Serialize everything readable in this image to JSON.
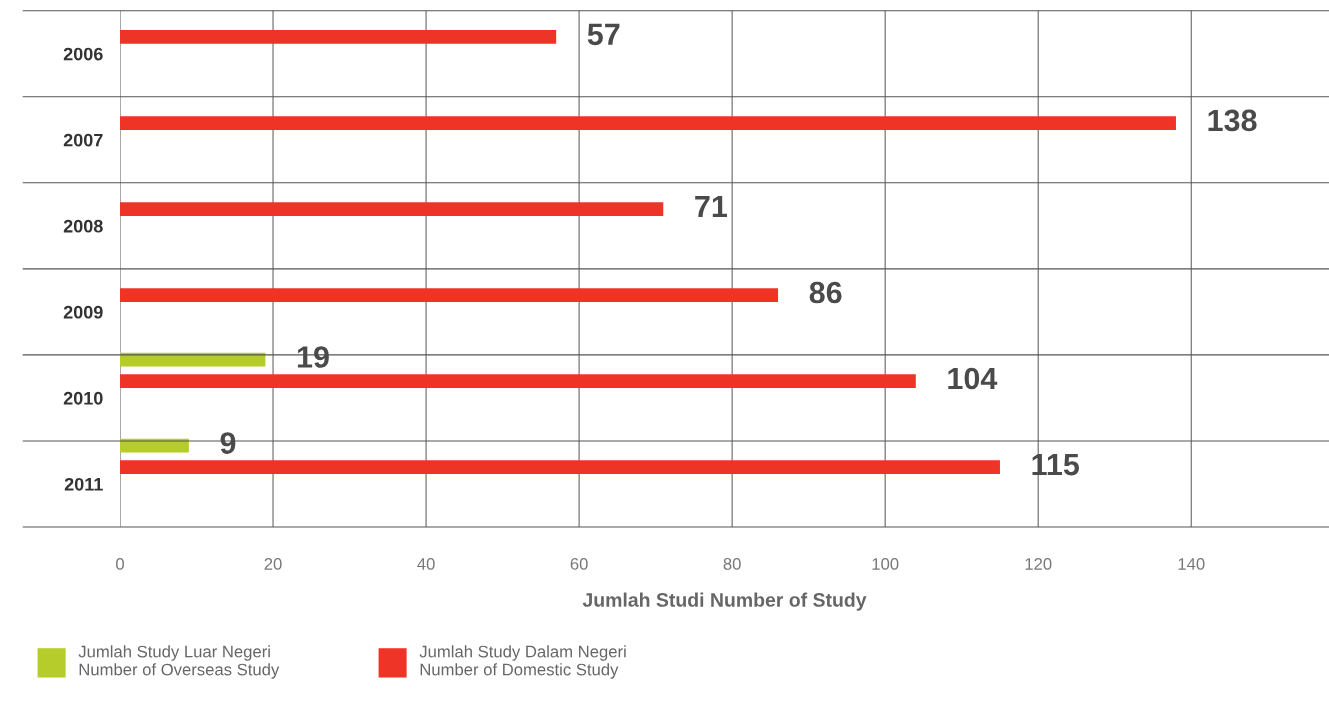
{
  "chart_data": {
    "type": "bar",
    "orientation": "horizontal",
    "categories": [
      "2006",
      "2007",
      "2008",
      "2009",
      "2010",
      "2011"
    ],
    "series": [
      {
        "name": "Jumlah Study Luar Negeri\nNumber of Overseas Study",
        "color": "#b5cc2a",
        "values": [
          null,
          null,
          null,
          null,
          19,
          9
        ]
      },
      {
        "name": "Jumlah Study Dalam Negeri\nNumber of Domestic Study",
        "color": "#ee3427",
        "values": [
          57,
          138,
          71,
          86,
          104,
          115
        ]
      }
    ],
    "xlim": [
      0,
      158
    ],
    "xticks": [
      0,
      20,
      40,
      60,
      80,
      100,
      120,
      140
    ],
    "xlabel": "Jumlah Studi Number of Study",
    "grid": "x",
    "legend": "bottom",
    "data_labels": true
  }
}
